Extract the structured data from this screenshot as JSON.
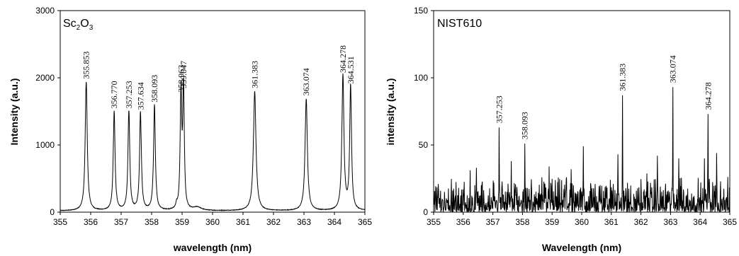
{
  "chart_data": [
    {
      "type": "line",
      "title": "Sc2O3",
      "title_parts": {
        "a": "Sc",
        "b": "2",
        "c": "O",
        "d": "3"
      },
      "xlabel": "wavelength (nm)",
      "ylabel": "Intensity (a.u.)",
      "xlim": [
        355,
        365
      ],
      "ylim": [
        0,
        3000
      ],
      "xticks": [
        "355",
        "356",
        "357",
        "358",
        "359",
        "360",
        "361",
        "362",
        "363",
        "364",
        "365"
      ],
      "yticks": [
        "0",
        "1000",
        "2000",
        "3000"
      ],
      "baseline": 15,
      "peaks": [
        {
          "label": "355.853",
          "x": 355.853,
          "y": 1920,
          "width": 0.04
        },
        {
          "label": "356.770",
          "x": 356.77,
          "y": 1480,
          "width": 0.035
        },
        {
          "label": "357.253",
          "x": 357.253,
          "y": 1480,
          "width": 0.035
        },
        {
          "label": "357.634",
          "x": 357.634,
          "y": 1460,
          "width": 0.035
        },
        {
          "label": "358.093",
          "x": 358.093,
          "y": 1570,
          "width": 0.035
        },
        {
          "label": "358.963",
          "x": 358.963,
          "y": 1720,
          "width": 0.03
        },
        {
          "label": "359.047",
          "x": 359.047,
          "y": 1780,
          "width": 0.03
        },
        {
          "label": "361.383",
          "x": 361.383,
          "y": 1780,
          "width": 0.05
        },
        {
          "label": "363.074",
          "x": 363.074,
          "y": 1670,
          "width": 0.045
        },
        {
          "label": "364.278",
          "x": 364.278,
          "y": 2010,
          "width": 0.04
        },
        {
          "label": "364.531",
          "x": 364.531,
          "y": 1850,
          "width": 0.035
        }
      ],
      "minor_peaks": [
        {
          "x": 358.82,
          "y": 60,
          "width": 0.03
        },
        {
          "x": 359.5,
          "y": 50,
          "width": 0.15
        }
      ]
    },
    {
      "type": "line",
      "title": "NIST610",
      "xlabel": "Wavelength (nm)",
      "ylabel": "intensity (a.u.)",
      "xlim": [
        355,
        365
      ],
      "ylim": [
        0,
        150
      ],
      "xticks": [
        "355",
        "356",
        "357",
        "358",
        "359",
        "360",
        "361",
        "362",
        "363",
        "364",
        "365"
      ],
      "yticks": [
        "0",
        "50",
        "100",
        "150"
      ],
      "noise_max": 28,
      "peaks": [
        {
          "label": "357.253",
          "x": 357.21,
          "y": 63
        },
        {
          "label": "358.093",
          "x": 358.08,
          "y": 51
        },
        {
          "label": "361.383",
          "x": 361.38,
          "y": 87
        },
        {
          "label": "363.074",
          "x": 363.08,
          "y": 93
        },
        {
          "label": "364.278",
          "x": 364.27,
          "y": 73
        }
      ],
      "spikes": [
        {
          "x": 357.62,
          "y": 38
        },
        {
          "x": 360.05,
          "y": 49
        },
        {
          "x": 361.22,
          "y": 43
        },
        {
          "x": 362.55,
          "y": 42
        },
        {
          "x": 363.28,
          "y": 40
        },
        {
          "x": 364.15,
          "y": 40
        },
        {
          "x": 364.55,
          "y": 44
        },
        {
          "x": 356.45,
          "y": 33
        },
        {
          "x": 358.9,
          "y": 34
        },
        {
          "x": 359.65,
          "y": 32
        }
      ]
    }
  ]
}
